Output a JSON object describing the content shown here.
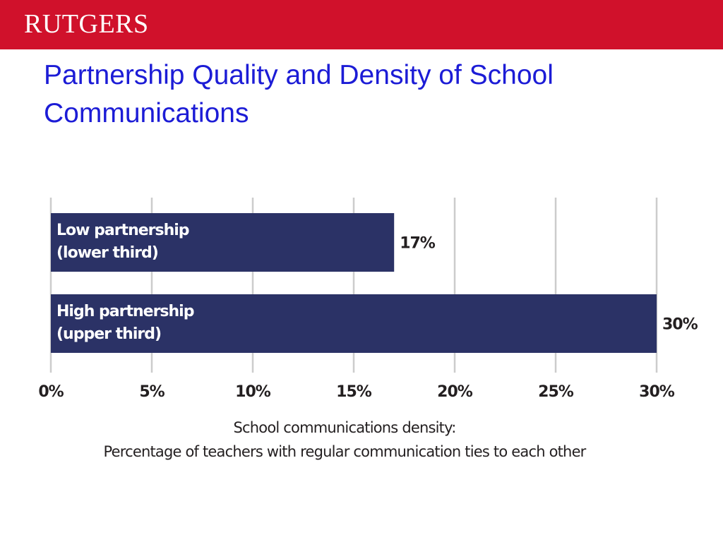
{
  "header": {
    "logo": "RUTGERS"
  },
  "chart_data": {
    "type": "bar",
    "orientation": "horizontal",
    "title": "Partnership Quality and Density of School Communications",
    "categories": [
      "Low partnership (lower third)",
      "High partnership (upper third)"
    ],
    "values": [
      17,
      30
    ],
    "value_labels": [
      "17%",
      "30%"
    ],
    "color": "#2b3266",
    "xlim": [
      0,
      30
    ],
    "xticks": [
      {
        "value": 0,
        "label": "0%"
      },
      {
        "value": 5,
        "label": "5%"
      },
      {
        "value": 10,
        "label": "10%"
      },
      {
        "value": 15,
        "label": "15%"
      },
      {
        "value": 20,
        "label": "20%"
      },
      {
        "value": 25,
        "label": "25%"
      },
      {
        "value": 30,
        "label": "30%"
      }
    ],
    "xlabel": [
      "School communications density:",
      "Percentage of teachers with regular communication ties to each other"
    ],
    "grid": true
  }
}
